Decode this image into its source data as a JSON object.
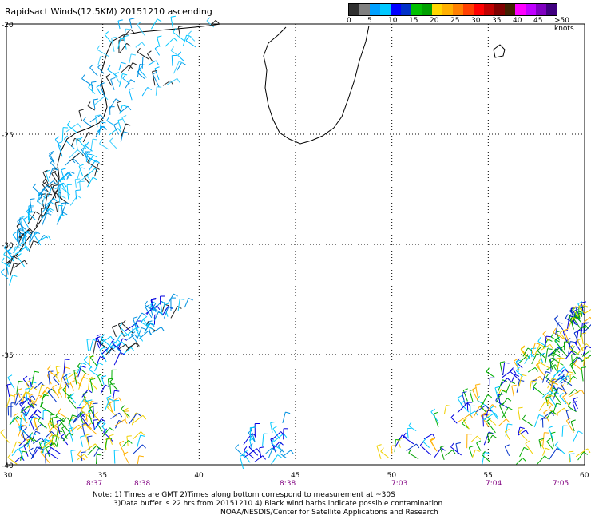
{
  "title": "Rapidsact Winds(12.5KM) 20151210 ascending",
  "scale": {
    "colors": [
      "#303030",
      "#808080",
      "#00a0ff",
      "#00c8ff",
      "#0000ff",
      "#0030c8",
      "#00c000",
      "#00a000",
      "#ffd700",
      "#ffb000",
      "#ff8000",
      "#ff4000",
      "#ff0000",
      "#c00000",
      "#800000",
      "#402000",
      "#ff00ff",
      "#c000ff",
      "#8000c0",
      "#400080"
    ],
    "labels": [
      "0",
      "5",
      "10",
      "15",
      "20",
      "25",
      "30",
      "35",
      "40",
      "45",
      ">50 knots"
    ]
  },
  "lat_labels": [
    "-20",
    "-25",
    "-30",
    "-35",
    "-40"
  ],
  "lon_labels": [
    "30",
    "35",
    "40",
    "45",
    "50",
    "55",
    "60"
  ],
  "time_labels": [
    "8:37",
    "8:38",
    "8:38",
    "7:03",
    "7:04",
    "7:05"
  ],
  "notes": {
    "line1": "Note:  1) Times are GMT   2)Times along bottom correspond to measurement at ~30S",
    "line2": "3)Data buffer is 22 hrs from 20151210  4) Black wind barbs indicate possible contamination",
    "line3": "NOAA/NESDIS/Center for Satellite Applications and Research"
  }
}
